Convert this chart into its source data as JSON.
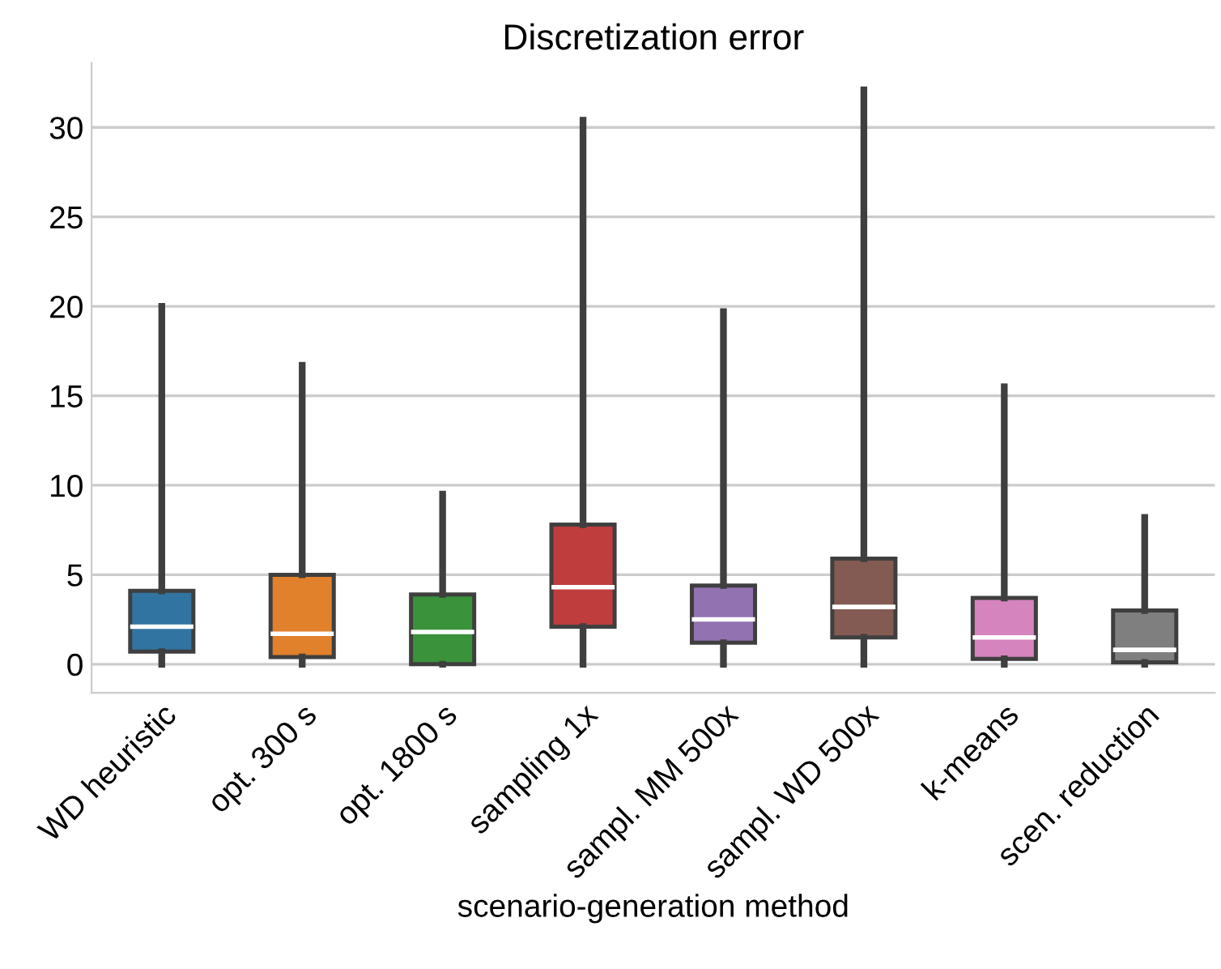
{
  "chart_data": {
    "type": "box",
    "title": "Discretization error",
    "xlabel": "scenario-generation method",
    "categories": [
      "WD heuristic",
      "opt. 300 s",
      "opt. 1800 s",
      "sampling 1x",
      "sampl. MM 500x",
      "sampl. WD 500x",
      "k-means",
      "scen. reduction"
    ],
    "colors": [
      "#3274a1",
      "#e1812c",
      "#3a923a",
      "#c03d3e",
      "#9372b2",
      "#845b53",
      "#d684bd",
      "#7f7f7f"
    ],
    "boxes": [
      {
        "low": 0,
        "q1": 0.7,
        "median": 2.1,
        "q3": 4.1,
        "high": 20
      },
      {
        "low": 0,
        "q1": 0.4,
        "median": 1.7,
        "q3": 5,
        "high": 16.7
      },
      {
        "low": 0,
        "q1": 0,
        "median": 1.8,
        "q3": 3.9,
        "high": 9.5
      },
      {
        "low": 0,
        "q1": 2.1,
        "median": 4.3,
        "q3": 7.8,
        "high": 30.4
      },
      {
        "low": 0,
        "q1": 1.2,
        "median": 2.5,
        "q3": 4.4,
        "high": 19.7
      },
      {
        "low": 0,
        "q1": 1.5,
        "median": 3.2,
        "q3": 5.9,
        "high": 32.1
      },
      {
        "low": 0,
        "q1": 0.3,
        "median": 1.5,
        "q3": 3.7,
        "high": 15.5
      },
      {
        "low": 0,
        "q1": 0.1,
        "median": 0.8,
        "q3": 3.0,
        "high": 8.2
      }
    ],
    "ylim": [
      -1.6,
      33.6
    ],
    "yticks": [
      0,
      5,
      10,
      15,
      20,
      25,
      30
    ],
    "grid": "y"
  }
}
